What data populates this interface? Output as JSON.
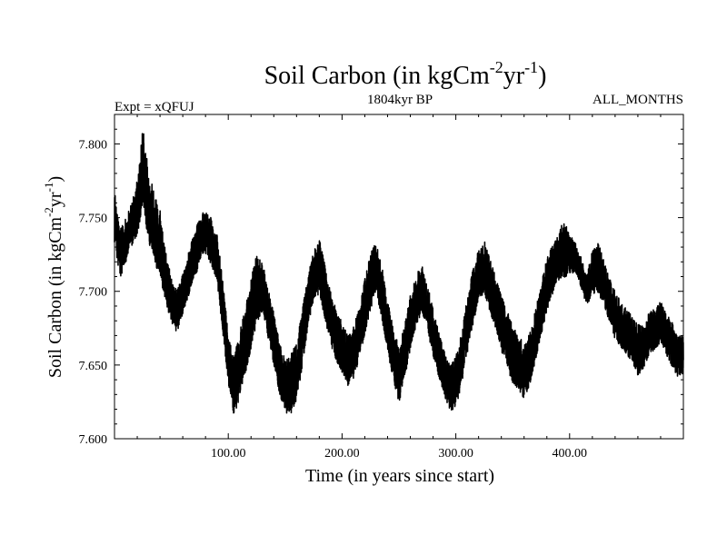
{
  "chart_data": {
    "type": "line",
    "title_main": "Soil Carbon (in kgCm",
    "title_exp1": "-2",
    "title_mid": "yr",
    "title_exp2": "-1",
    "title_end": ")",
    "subtitle_left": "Expt = xQFUJ",
    "subtitle_center": "1804kyr BP",
    "subtitle_right": "ALL_MONTHS",
    "xlabel": "Time (in years since start)",
    "ylabel_main": "Soil Carbon (in kgCm",
    "ylabel_exp1": "-2",
    "ylabel_mid": "yr",
    "ylabel_exp2": "-1",
    "ylabel_end": ")",
    "xlim": [
      0,
      500
    ],
    "ylim": [
      7.6,
      7.82
    ],
    "xticks": [
      100,
      200,
      300,
      400
    ],
    "xtick_labels": [
      "100.00",
      "200.00",
      "300.00",
      "400.00"
    ],
    "yticks": [
      7.6,
      7.65,
      7.7,
      7.75,
      7.8
    ],
    "ytick_labels": [
      "7.600",
      "7.650",
      "7.700",
      "7.750",
      "7.800"
    ],
    "series": [
      {
        "name": "Soil Carbon",
        "color": "#000000",
        "envelope_x": [
          0,
          5,
          10,
          15,
          20,
          25,
          30,
          35,
          40,
          45,
          50,
          55,
          60,
          65,
          70,
          75,
          80,
          85,
          90,
          95,
          100,
          105,
          110,
          115,
          120,
          125,
          130,
          135,
          140,
          145,
          150,
          155,
          160,
          165,
          170,
          175,
          180,
          185,
          190,
          195,
          200,
          205,
          210,
          215,
          220,
          225,
          230,
          235,
          240,
          245,
          250,
          255,
          260,
          265,
          270,
          275,
          280,
          285,
          290,
          295,
          300,
          305,
          310,
          315,
          320,
          325,
          330,
          335,
          340,
          345,
          350,
          355,
          360,
          365,
          370,
          375,
          380,
          385,
          390,
          395,
          400,
          405,
          410,
          415,
          420,
          425,
          430,
          435,
          440,
          445,
          450,
          455,
          460,
          465,
          470,
          475,
          480,
          485,
          490,
          495,
          500
        ],
        "envelope_low": [
          7.725,
          7.7,
          7.712,
          7.722,
          7.73,
          7.742,
          7.722,
          7.71,
          7.698,
          7.682,
          7.672,
          7.665,
          7.678,
          7.69,
          7.7,
          7.712,
          7.718,
          7.71,
          7.7,
          7.665,
          7.63,
          7.605,
          7.618,
          7.632,
          7.65,
          7.668,
          7.678,
          7.66,
          7.642,
          7.622,
          7.61,
          7.606,
          7.614,
          7.64,
          7.668,
          7.685,
          7.69,
          7.672,
          7.655,
          7.645,
          7.637,
          7.628,
          7.632,
          7.645,
          7.662,
          7.678,
          7.69,
          7.672,
          7.652,
          7.63,
          7.615,
          7.632,
          7.652,
          7.668,
          7.678,
          7.665,
          7.648,
          7.635,
          7.622,
          7.612,
          7.612,
          7.628,
          7.648,
          7.668,
          7.685,
          7.69,
          7.678,
          7.665,
          7.65,
          7.64,
          7.628,
          7.622,
          7.618,
          7.628,
          7.645,
          7.662,
          7.678,
          7.69,
          7.7,
          7.7,
          7.705,
          7.708,
          7.698,
          7.685,
          7.69,
          7.69,
          7.685,
          7.67,
          7.66,
          7.655,
          7.65,
          7.645,
          7.635,
          7.64,
          7.65,
          7.652,
          7.66,
          7.65,
          7.642,
          7.635,
          7.635
        ],
        "envelope_high": [
          7.77,
          7.745,
          7.752,
          7.762,
          7.778,
          7.815,
          7.785,
          7.77,
          7.758,
          7.73,
          7.712,
          7.702,
          7.715,
          7.728,
          7.742,
          7.752,
          7.758,
          7.752,
          7.742,
          7.712,
          7.672,
          7.658,
          7.675,
          7.692,
          7.712,
          7.728,
          7.722,
          7.705,
          7.688,
          7.67,
          7.655,
          7.66,
          7.67,
          7.69,
          7.712,
          7.73,
          7.738,
          7.722,
          7.702,
          7.69,
          7.682,
          7.672,
          7.678,
          7.692,
          7.712,
          7.73,
          7.738,
          7.72,
          7.698,
          7.678,
          7.665,
          7.68,
          7.7,
          7.712,
          7.722,
          7.708,
          7.69,
          7.675,
          7.662,
          7.652,
          7.658,
          7.675,
          7.698,
          7.718,
          7.732,
          7.738,
          7.725,
          7.712,
          7.7,
          7.69,
          7.68,
          7.672,
          7.668,
          7.675,
          7.69,
          7.708,
          7.725,
          7.735,
          7.742,
          7.752,
          7.74,
          7.735,
          7.725,
          7.712,
          7.73,
          7.735,
          7.725,
          7.712,
          7.702,
          7.695,
          7.69,
          7.685,
          7.68,
          7.678,
          7.688,
          7.69,
          7.695,
          7.688,
          7.682,
          7.672,
          7.672
        ]
      }
    ]
  }
}
